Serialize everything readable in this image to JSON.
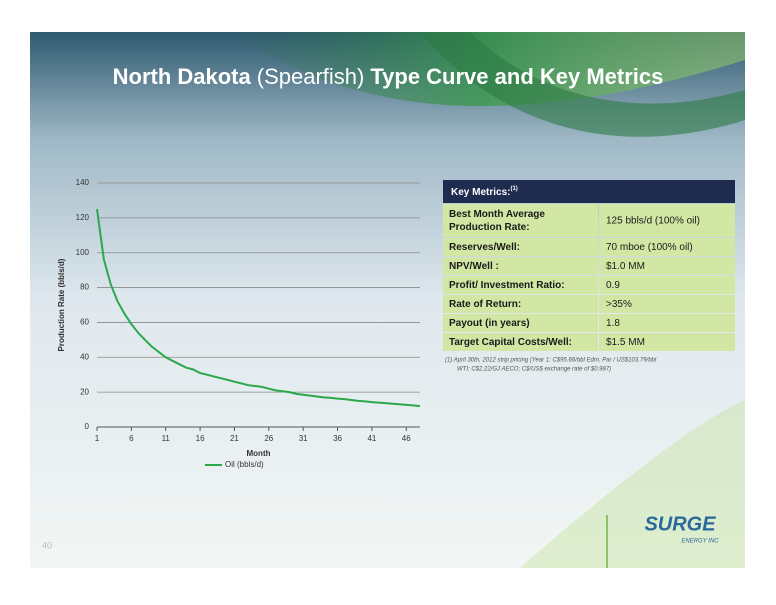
{
  "slide": {
    "title_parts": [
      "North Dakota",
      "(Spearfish)",
      "Type Curve and Key Metrics"
    ],
    "page_number": "40",
    "logo": "SURGE",
    "logo_sub": "ENERGY INC"
  },
  "chart_data": {
    "type": "line",
    "x_label": "Month",
    "y_label": "Production Rate (bbls/d)",
    "x": [
      1,
      2,
      3,
      4,
      5,
      6,
      7,
      8,
      9,
      10,
      11,
      12,
      13,
      14,
      15,
      16,
      17,
      18,
      19,
      20,
      21,
      22,
      23,
      24,
      25,
      26,
      27,
      28,
      29,
      30,
      31,
      32,
      33,
      34,
      35,
      36,
      37,
      38,
      39,
      40,
      41,
      42,
      43,
      44,
      45,
      46,
      47,
      48
    ],
    "series": [
      {
        "name": "Oil (bbls/d)",
        "color": "#2ca84a",
        "values": [
          125,
          96,
          82,
          72,
          65,
          59,
          54,
          50,
          46,
          43,
          40,
          38,
          36,
          34,
          33,
          31,
          30,
          29,
          28,
          27,
          26,
          25,
          24,
          23.5,
          23,
          22,
          21,
          20.5,
          20,
          19,
          18.5,
          18,
          17.5,
          17,
          16.7,
          16.3,
          16,
          15.5,
          15,
          14.7,
          14.3,
          14,
          13.7,
          13.3,
          13,
          12.7,
          12.4,
          12
        ]
      }
    ],
    "xlim": [
      1,
      48
    ],
    "xticks": [
      1,
      6,
      11,
      16,
      21,
      26,
      31,
      36,
      41,
      46
    ],
    "ylim": [
      0,
      140
    ],
    "yticks": [
      0,
      20,
      40,
      60,
      80,
      100,
      120,
      140
    ],
    "grid": true
  },
  "table": {
    "header": "Key Metrics:",
    "header_note": "(1)",
    "rows": [
      {
        "label_lines": [
          "Best Month Average",
          "Production Rate:"
        ],
        "value": "125 bbls/d (100% oil)"
      },
      {
        "label_lines": [
          "Reserves/Well:"
        ],
        "value": "70 mboe (100% oil)"
      },
      {
        "label_lines": [
          "NPV/Well :"
        ],
        "value": "$1.0 MM"
      },
      {
        "label_lines": [
          "Profit/ Investment Ratio:"
        ],
        "value": "0.9"
      },
      {
        "label_lines": [
          "Rate of Return:"
        ],
        "value": ">35%"
      },
      {
        "label_lines": [
          "Payout (in years)"
        ],
        "value": "1.8"
      },
      {
        "label_lines": [
          "Target Capital Costs/Well:"
        ],
        "value": "$1.5 MM"
      }
    ],
    "footnote_lines": [
      "(1)  April 30th, 2012 strip pricing (Year 1: C$95.66/bbl Edm. Par / US$103.79/bbl",
      "WTI; C$2.22/GJ AECO; C$/US$ exchange rate of $0.987)"
    ]
  }
}
